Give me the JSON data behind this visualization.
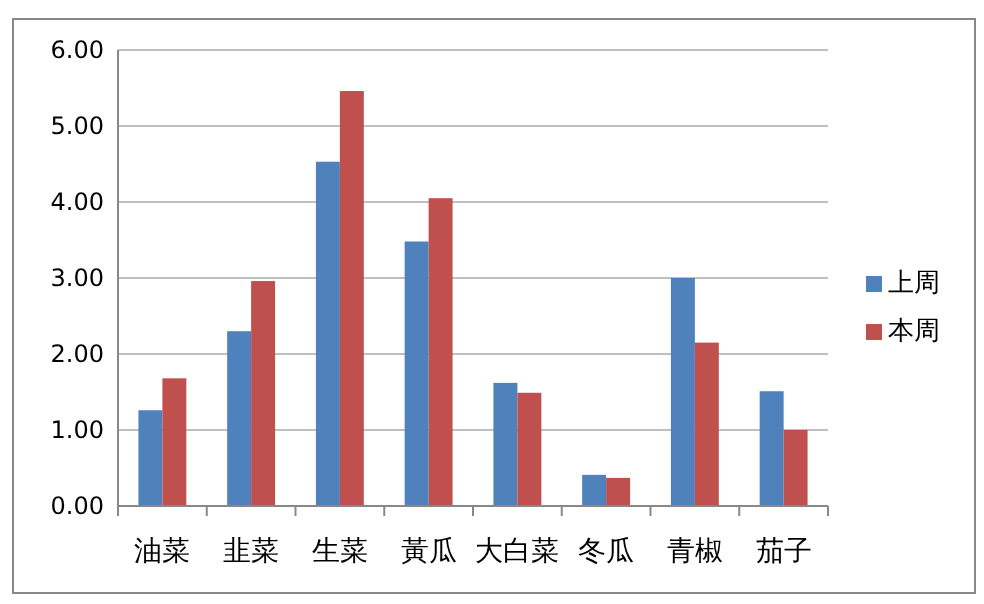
{
  "chart_data": {
    "type": "bar",
    "categories": [
      "油菜",
      "韭菜",
      "生菜",
      "黃瓜",
      "大白菜",
      "冬瓜",
      "青椒",
      "茄子"
    ],
    "series": [
      {
        "name": "上周",
        "color": "#4f81bd",
        "values": [
          1.26,
          2.3,
          4.53,
          3.48,
          1.62,
          0.41,
          3.0,
          1.51
        ]
      },
      {
        "name": "本周",
        "color": "#c0504d",
        "values": [
          1.68,
          2.96,
          5.46,
          4.05,
          1.49,
          0.37,
          2.15,
          1.0
        ]
      }
    ],
    "ylim": [
      0,
      6
    ],
    "yticks": [
      {
        "value": 0,
        "label": "0.00"
      },
      {
        "value": 1,
        "label": "1.00"
      },
      {
        "value": 2,
        "label": "2.00"
      },
      {
        "value": 3,
        "label": "3.00"
      },
      {
        "value": 4,
        "label": "4.00"
      },
      {
        "value": 5,
        "label": "5.00"
      },
      {
        "value": 6,
        "label": "6.00"
      }
    ],
    "grid": "y",
    "legend": "right"
  }
}
